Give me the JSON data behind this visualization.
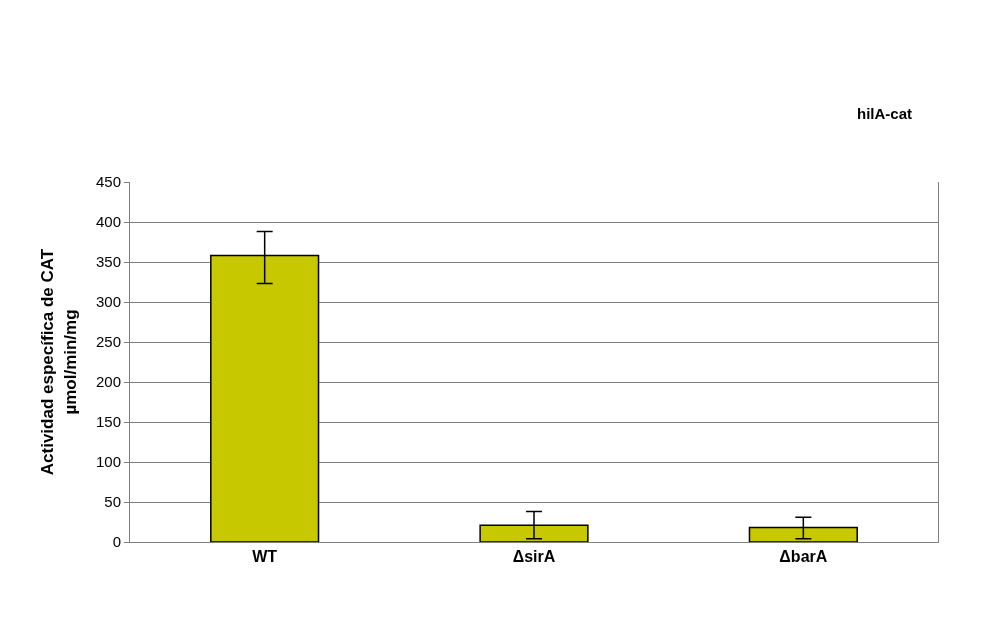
{
  "chart_data": {
    "type": "bar",
    "categories": [
      "WT",
      "ΔsirA",
      "ΔbarA"
    ],
    "values": [
      358,
      21,
      18
    ],
    "errors": [
      [
        323,
        388
      ],
      [
        4,
        38
      ],
      [
        4,
        31
      ]
    ],
    "color": "#c8c800",
    "ylabel": "Actividad específica de CAT\nµmol/min/mg",
    "annotations": [
      "hilA-cat"
    ],
    "ylim": [
      0,
      450
    ],
    "yticks": [
      0,
      50,
      100,
      150,
      200,
      250,
      300,
      350,
      400,
      450
    ],
    "grid": "y"
  }
}
